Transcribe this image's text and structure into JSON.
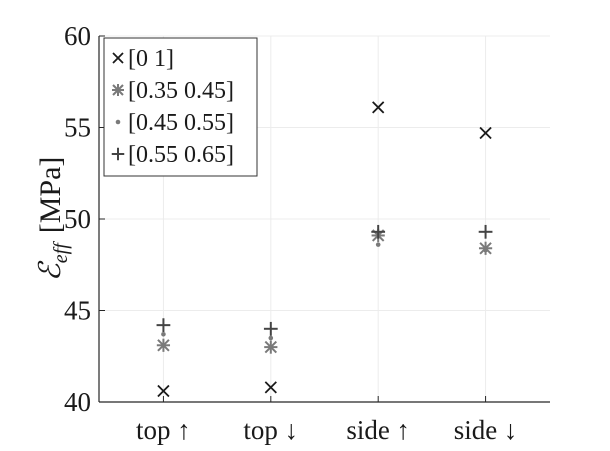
{
  "chart_data": {
    "type": "scatter",
    "categories": [
      "top ↑",
      "top ↓",
      "side ↑",
      "side ↓"
    ],
    "ylabel_symbol": "ℰ",
    "ylabel_subscript": "eff",
    "ylabel_unit": "[MPa]",
    "ylim": [
      40,
      60
    ],
    "yticks": [
      40,
      45,
      50,
      55,
      60
    ],
    "grid": true,
    "legend_placement": "top-left",
    "series": [
      {
        "name": "[0 1]",
        "marker": "x",
        "color": "#1a1a1a",
        "values": [
          40.6,
          40.8,
          56.1,
          54.7
        ]
      },
      {
        "name": "[0.35 0.45]",
        "marker": "asterisk",
        "color": "#7a7a7a",
        "values": [
          43.1,
          43.0,
          49.1,
          48.4
        ]
      },
      {
        "name": "[0.45 0.55]",
        "marker": "dot",
        "color": "#7a7a7a",
        "values": [
          43.7,
          43.5,
          48.6,
          48.3
        ]
      },
      {
        "name": "[0.55 0.65]",
        "marker": "plus",
        "color": "#444444",
        "values": [
          44.2,
          44.0,
          49.3,
          49.3
        ]
      }
    ]
  }
}
